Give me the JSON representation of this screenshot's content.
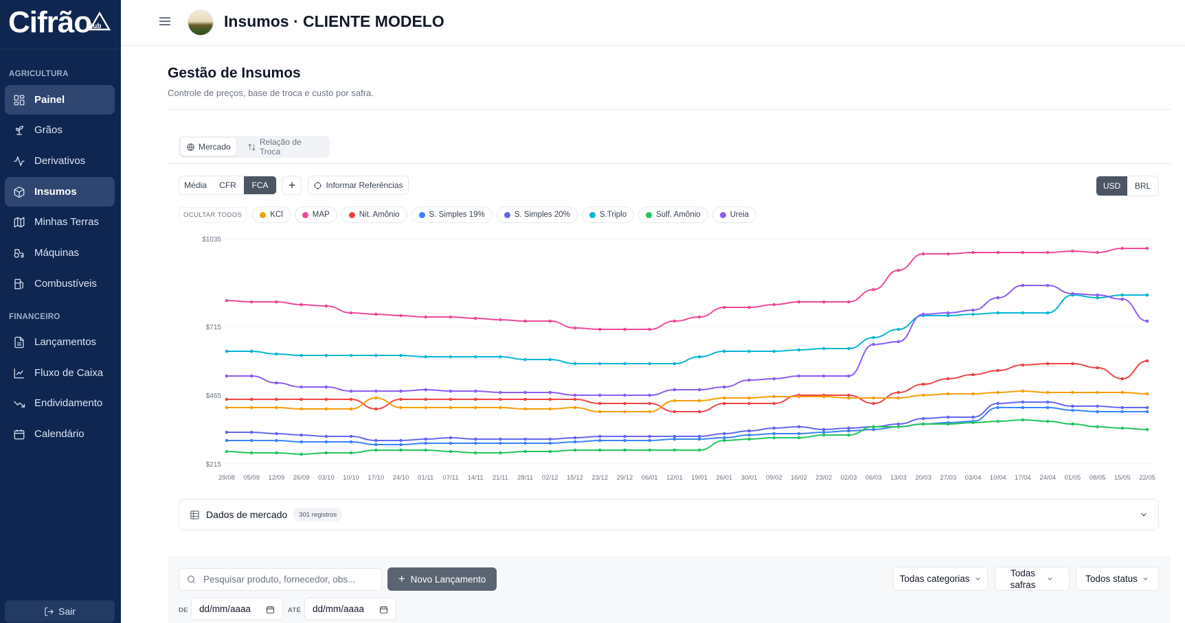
{
  "brand": {
    "name": "Cifrão",
    "suffix": "Hub"
  },
  "sidebar": {
    "sections": [
      {
        "label": "AGRICULTURA"
      },
      {
        "label": "FINANCEIRO"
      }
    ],
    "items": [
      {
        "label": "Painel",
        "icon": "dashboard-icon"
      },
      {
        "label": "Grãos",
        "icon": "sprout-icon"
      },
      {
        "label": "Derivativos",
        "icon": "activity-icon"
      },
      {
        "label": "Insumos",
        "icon": "package-icon"
      },
      {
        "label": "Minhas Terras",
        "icon": "map-icon"
      },
      {
        "label": "Máquinas",
        "icon": "tractor-icon"
      },
      {
        "label": "Combustíveis",
        "icon": "fuel-icon"
      },
      {
        "label": "Lançamentos",
        "icon": "file-text-icon"
      },
      {
        "label": "Fluxo de Caixa",
        "icon": "line-chart-icon"
      },
      {
        "label": "Endividamento",
        "icon": "trending-down-icon"
      },
      {
        "label": "Calendário",
        "icon": "calendar-icon"
      }
    ],
    "logout_label": "Sair"
  },
  "header": {
    "title": "Insumos · CLIENTE MODELO"
  },
  "page": {
    "title": "Gestão de Insumos",
    "subtitle": "Controle de preços, base de troca e custo por safra."
  },
  "tabs": [
    {
      "label": "Mercado",
      "active": true
    },
    {
      "label": "Relação de Troca",
      "active": false
    }
  ],
  "price_basis": {
    "options": [
      "Média",
      "CFR",
      "FCA"
    ],
    "selected": "FCA"
  },
  "reference_button": "Informar Referências",
  "currency": {
    "options": [
      "USD",
      "BRL"
    ],
    "selected": "USD"
  },
  "legend": {
    "hide_all": "OCULTAR TODOS",
    "items": [
      {
        "label": "KCl",
        "color": "#f59e0b"
      },
      {
        "label": "MAP",
        "color": "#ec4899"
      },
      {
        "label": "Nit. Amônio",
        "color": "#ef4444"
      },
      {
        "label": "S. Simples 19%",
        "color": "#3b82f6"
      },
      {
        "label": "S. Simples 20%",
        "color": "#6366f1"
      },
      {
        "label": "S.Triplo",
        "color": "#06b6d4"
      },
      {
        "label": "Sulf. Amônio",
        "color": "#22c55e"
      },
      {
        "label": "Ureia",
        "color": "#8b5cf6"
      }
    ]
  },
  "chart_data": {
    "type": "line",
    "ylim": [
      215,
      1035
    ],
    "yticks": [
      "$1035",
      "$715",
      "$465",
      "$215"
    ],
    "ytick_values": [
      1035,
      715,
      465,
      215
    ],
    "x": [
      "29/08",
      "05/09",
      "12/09",
      "26/09",
      "03/10",
      "10/10",
      "17/10",
      "24/10",
      "01/11",
      "07/11",
      "14/11",
      "21/11",
      "28/11",
      "02/12",
      "15/12",
      "23/12",
      "29/12",
      "06/01",
      "12/01",
      "19/01",
      "26/01",
      "30/01",
      "09/02",
      "16/02",
      "23/02",
      "02/03",
      "06/03",
      "13/03",
      "20/03",
      "27/03",
      "03/04",
      "10/04",
      "17/04",
      "24/04",
      "01/05",
      "08/05",
      "15/05",
      "22/05"
    ],
    "series": [
      {
        "name": "MAP",
        "color": "#ec4899",
        "values": [
          810,
          805,
          805,
          795,
          790,
          765,
          760,
          755,
          750,
          750,
          745,
          740,
          735,
          735,
          710,
          705,
          705,
          705,
          735,
          750,
          785,
          785,
          795,
          805,
          805,
          805,
          850,
          920,
          980,
          980,
          985,
          985,
          985,
          985,
          990,
          985,
          1000,
          1000
        ]
      },
      {
        "name": "S.Triplo",
        "color": "#06b6d4",
        "values": [
          625,
          625,
          615,
          610,
          610,
          610,
          610,
          610,
          605,
          605,
          605,
          605,
          595,
          595,
          580,
          580,
          580,
          580,
          580,
          605,
          625,
          625,
          625,
          630,
          635,
          635,
          675,
          705,
          755,
          755,
          760,
          765,
          765,
          765,
          830,
          820,
          830,
          830
        ]
      },
      {
        "name": "Ureia",
        "color": "#8b5cf6",
        "values": [
          535,
          535,
          510,
          495,
          495,
          480,
          480,
          480,
          485,
          480,
          480,
          475,
          475,
          475,
          465,
          465,
          465,
          465,
          485,
          485,
          495,
          520,
          525,
          535,
          535,
          535,
          650,
          660,
          760,
          765,
          775,
          820,
          865,
          865,
          835,
          830,
          815,
          735
        ]
      },
      {
        "name": "Nit. Amônio",
        "color": "#ef4444",
        "values": [
          450,
          450,
          450,
          450,
          450,
          450,
          415,
          450,
          450,
          450,
          450,
          450,
          450,
          450,
          450,
          435,
          435,
          435,
          405,
          405,
          435,
          435,
          435,
          465,
          465,
          465,
          435,
          475,
          505,
          525,
          540,
          555,
          575,
          580,
          580,
          565,
          525,
          590
        ]
      },
      {
        "name": "KCl",
        "color": "#f59e0b",
        "values": [
          420,
          420,
          420,
          415,
          415,
          415,
          455,
          420,
          420,
          420,
          420,
          420,
          415,
          415,
          420,
          405,
          405,
          405,
          445,
          445,
          455,
          455,
          460,
          460,
          460,
          455,
          455,
          455,
          465,
          470,
          470,
          475,
          480,
          475,
          475,
          475,
          475,
          470
        ]
      },
      {
        "name": "S. Simples 20%",
        "color": "#6366f1",
        "values": [
          330,
          330,
          325,
          320,
          315,
          315,
          300,
          300,
          305,
          310,
          305,
          305,
          305,
          305,
          310,
          315,
          315,
          315,
          315,
          315,
          325,
          335,
          345,
          350,
          340,
          345,
          350,
          360,
          380,
          385,
          385,
          435,
          440,
          440,
          425,
          425,
          420,
          420
        ]
      },
      {
        "name": "S. Simples 19%",
        "color": "#3b82f6",
        "values": [
          300,
          300,
          300,
          295,
          295,
          295,
          285,
          285,
          290,
          290,
          290,
          290,
          290,
          290,
          295,
          300,
          300,
          300,
          305,
          305,
          310,
          320,
          325,
          325,
          330,
          335,
          340,
          350,
          360,
          365,
          370,
          420,
          420,
          420,
          410,
          405,
          405,
          405
        ]
      },
      {
        "name": "Sulf. Amônio",
        "color": "#22c55e",
        "values": [
          260,
          255,
          255,
          250,
          255,
          255,
          265,
          265,
          265,
          260,
          255,
          255,
          260,
          260,
          265,
          265,
          265,
          265,
          265,
          265,
          300,
          305,
          310,
          310,
          320,
          320,
          350,
          350,
          360,
          360,
          365,
          370,
          375,
          370,
          360,
          350,
          345,
          340
        ]
      }
    ]
  },
  "market_data": {
    "title": "Dados de mercado",
    "count": "301 registros"
  },
  "filters": {
    "search_placeholder": "Pesquisar produto, fornecedor, obs...",
    "new_button": "Novo Lançamento",
    "category": "Todas categorias",
    "harvest_line1": "Todas",
    "harvest_line2": "safras",
    "status": "Todos status",
    "date_from_label": "DE",
    "date_to_label": "ATÉ",
    "date_placeholder": "dd/mm/aaaa"
  }
}
